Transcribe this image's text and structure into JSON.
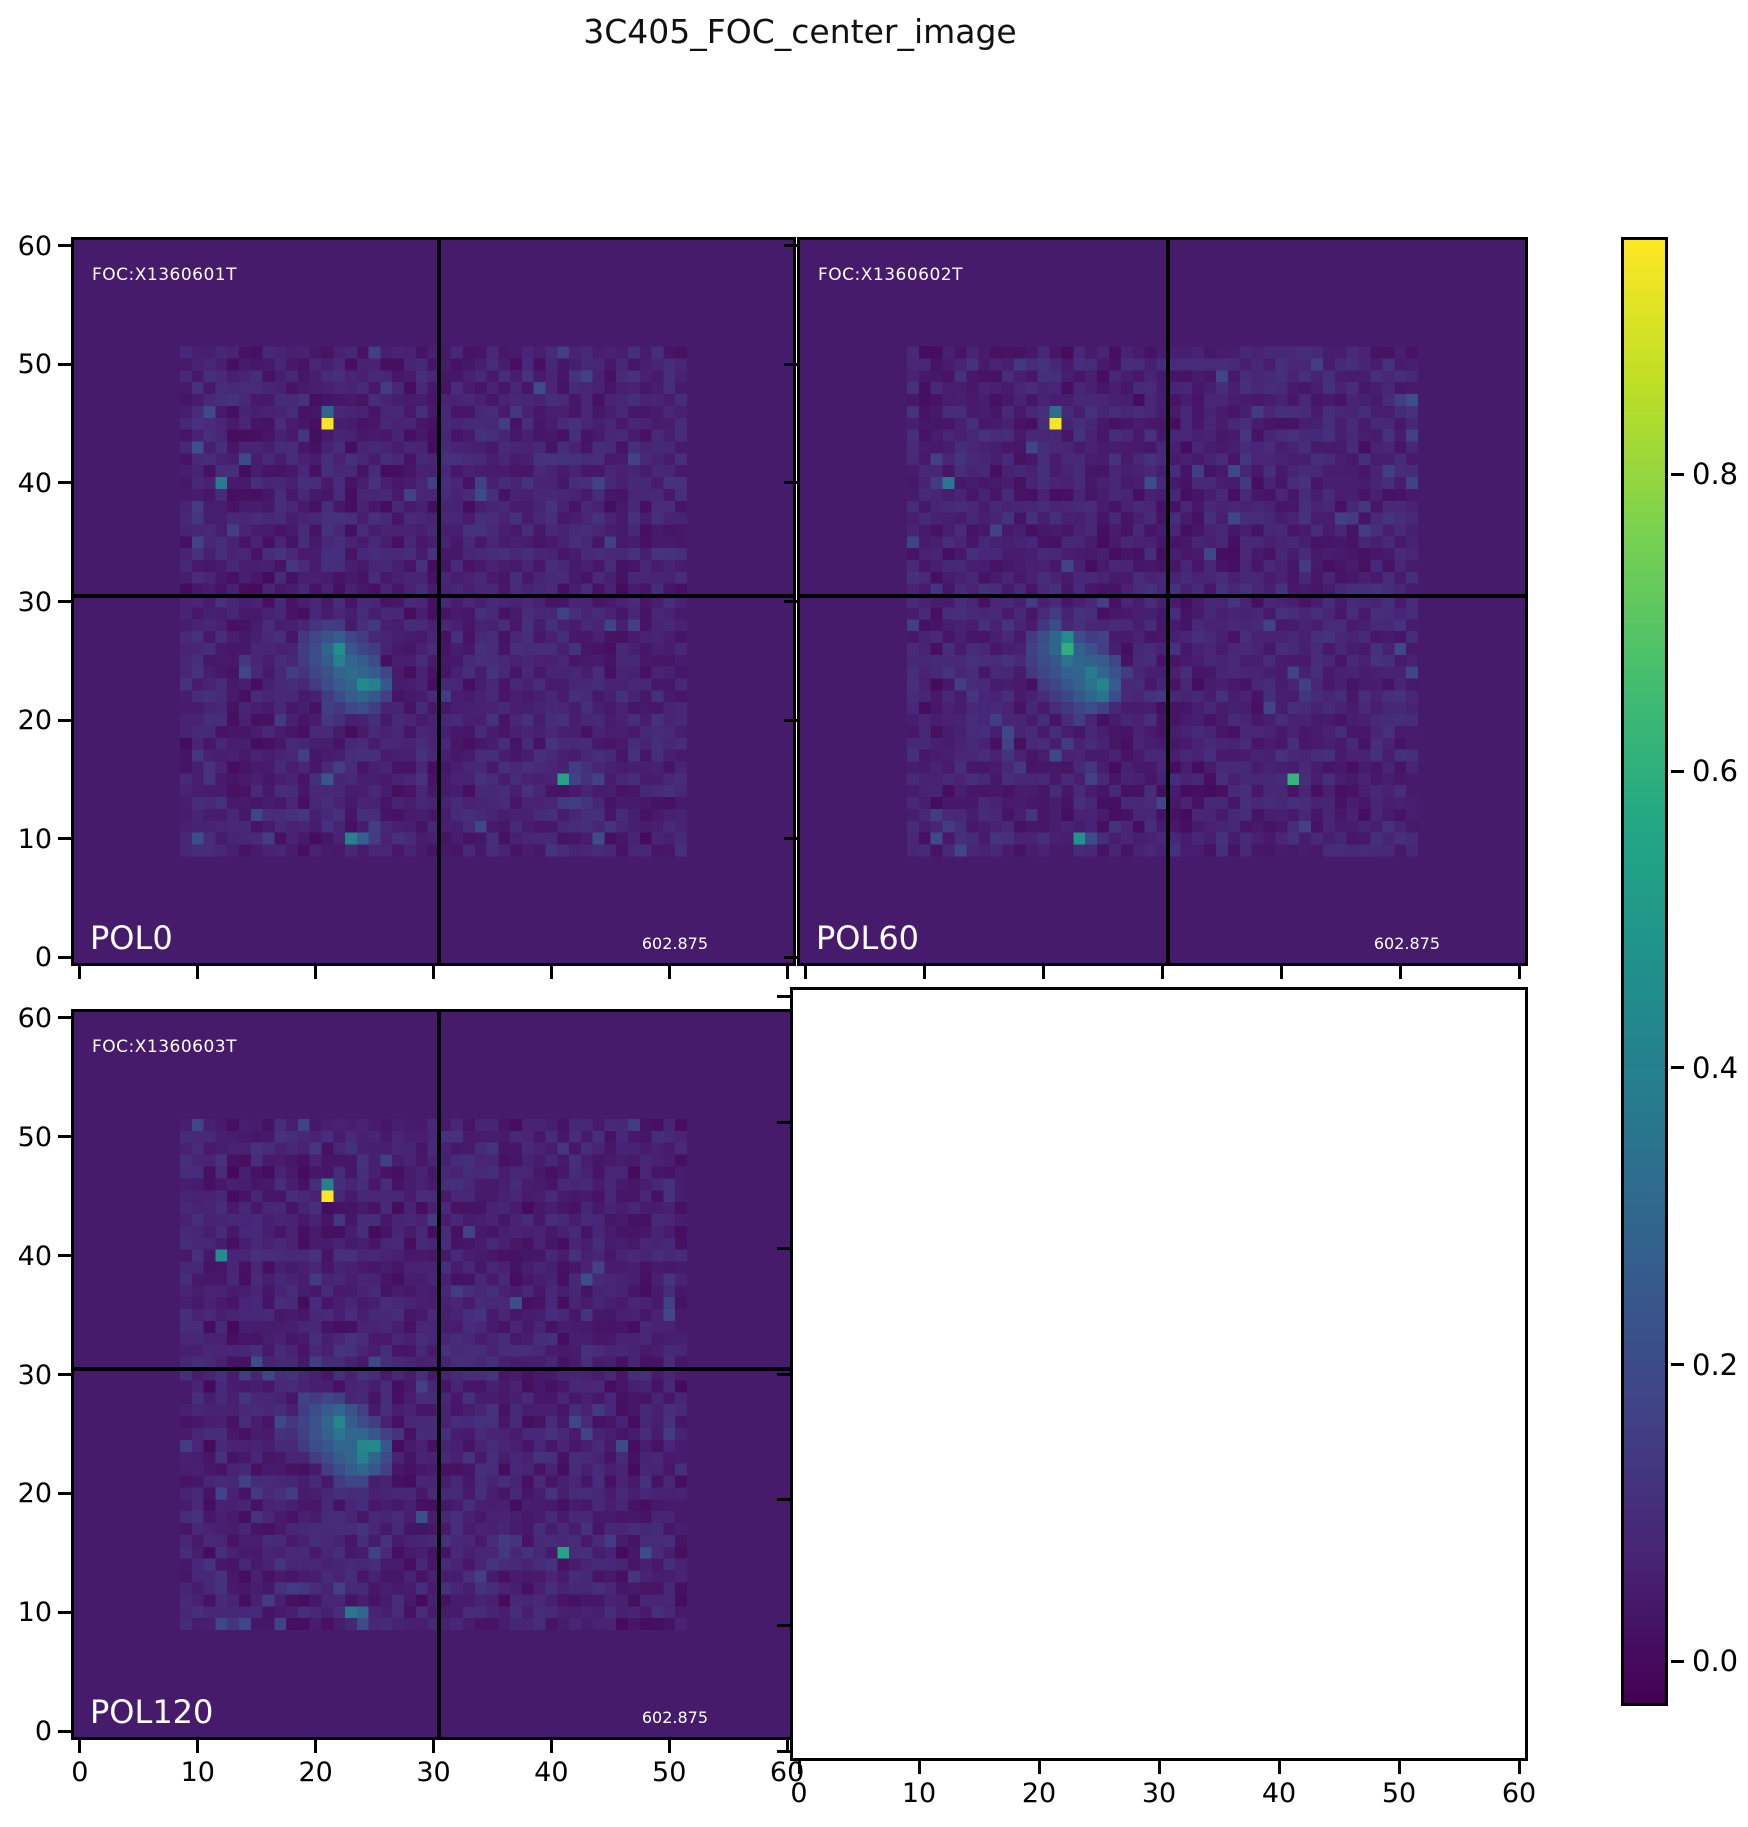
{
  "title": "3C405_FOC_center_image",
  "colors": {
    "figure_bg": "#ffffff",
    "cmap_low": "#440154",
    "cmap_high": "#fde725",
    "annotation_text": "#ffffff",
    "axis_text": "#000000",
    "crosshair": "#000000"
  },
  "chart_data": {
    "type": "heatmap",
    "colormap": "viridis",
    "grid_size": 61,
    "axes": {
      "xlim": [
        -0.5,
        60.5
      ],
      "ylim": [
        -0.5,
        60.5
      ],
      "x_ticks": [
        0,
        10,
        20,
        30,
        40,
        50,
        60
      ],
      "y_ticks": [
        0,
        10,
        20,
        30,
        40,
        50,
        60
      ]
    },
    "crosshair": {
      "x": 30.5,
      "y": 30.5
    },
    "colorbar": {
      "vmin": -0.028,
      "vmax": 0.958,
      "ticks": [
        0.0,
        0.2,
        0.4,
        0.6,
        0.8
      ],
      "position": "right"
    },
    "noise": {
      "outside_square_level": 0.045,
      "square_region": [
        8.5,
        51.5
      ],
      "inside_base": 0.018,
      "inside_amplitude": 0.085,
      "sparkle_chance": 0.035
    },
    "panels": [
      {
        "id": "pol0",
        "position": "top-left",
        "corner_label": "FOC:X1360601T",
        "pol_label": "POL0",
        "value_label": "602.875",
        "seed": 20231,
        "points": [
          [
            21,
            45,
            0.95
          ],
          [
            21,
            46,
            0.3
          ],
          [
            12,
            40,
            0.38
          ],
          [
            41,
            15,
            0.55
          ],
          [
            23,
            10,
            0.4
          ],
          [
            24,
            10,
            0.28
          ]
        ],
        "blob": [
          [
            20,
            28,
            0.12
          ],
          [
            21,
            28,
            0.15
          ],
          [
            22,
            28,
            0.14
          ],
          [
            19,
            27,
            0.13
          ],
          [
            20,
            27,
            0.18
          ],
          [
            21,
            27,
            0.22
          ],
          [
            22,
            27,
            0.26
          ],
          [
            23,
            27,
            0.18
          ],
          [
            24,
            27,
            0.14
          ],
          [
            19,
            26,
            0.15
          ],
          [
            20,
            26,
            0.2
          ],
          [
            21,
            26,
            0.3
          ],
          [
            22,
            26,
            0.46
          ],
          [
            23,
            26,
            0.24
          ],
          [
            24,
            26,
            0.18
          ],
          [
            25,
            26,
            0.14
          ],
          [
            19,
            25,
            0.14
          ],
          [
            20,
            25,
            0.2
          ],
          [
            21,
            25,
            0.26
          ],
          [
            22,
            25,
            0.4
          ],
          [
            23,
            25,
            0.3
          ],
          [
            24,
            25,
            0.26
          ],
          [
            25,
            25,
            0.2
          ],
          [
            19,
            24,
            0.12
          ],
          [
            20,
            24,
            0.18
          ],
          [
            21,
            24,
            0.22
          ],
          [
            22,
            24,
            0.3
          ],
          [
            23,
            24,
            0.32
          ],
          [
            24,
            24,
            0.3
          ],
          [
            25,
            24,
            0.26
          ],
          [
            26,
            24,
            0.18
          ],
          [
            20,
            23,
            0.14
          ],
          [
            21,
            23,
            0.2
          ],
          [
            22,
            23,
            0.26
          ],
          [
            23,
            23,
            0.3
          ],
          [
            24,
            23,
            0.44
          ],
          [
            25,
            23,
            0.4
          ],
          [
            26,
            23,
            0.24
          ],
          [
            21,
            22,
            0.14
          ],
          [
            22,
            22,
            0.2
          ],
          [
            23,
            22,
            0.26
          ],
          [
            24,
            22,
            0.3
          ],
          [
            25,
            22,
            0.24
          ],
          [
            26,
            22,
            0.16
          ],
          [
            22,
            21,
            0.13
          ],
          [
            23,
            21,
            0.18
          ],
          [
            24,
            21,
            0.2
          ],
          [
            25,
            21,
            0.15
          ]
        ]
      },
      {
        "id": "pol60",
        "position": "top-right",
        "corner_label": "FOC:X1360602T",
        "pol_label": "POL60",
        "value_label": "602.875",
        "seed": 40507,
        "points": [
          [
            21,
            45,
            0.95
          ],
          [
            21,
            46,
            0.33
          ],
          [
            12,
            40,
            0.36
          ],
          [
            41,
            15,
            0.62
          ],
          [
            23,
            10,
            0.48
          ],
          [
            24,
            10,
            0.2
          ]
        ],
        "blob": [
          [
            20,
            28,
            0.13
          ],
          [
            21,
            28,
            0.2
          ],
          [
            21,
            29,
            0.14
          ],
          [
            19,
            27,
            0.14
          ],
          [
            20,
            27,
            0.2
          ],
          [
            21,
            27,
            0.3
          ],
          [
            22,
            27,
            0.45
          ],
          [
            23,
            27,
            0.2
          ],
          [
            24,
            27,
            0.15
          ],
          [
            19,
            26,
            0.16
          ],
          [
            20,
            26,
            0.22
          ],
          [
            21,
            26,
            0.3
          ],
          [
            22,
            26,
            0.6
          ],
          [
            23,
            26,
            0.28
          ],
          [
            24,
            26,
            0.22
          ],
          [
            25,
            26,
            0.16
          ],
          [
            19,
            25,
            0.15
          ],
          [
            20,
            25,
            0.2
          ],
          [
            21,
            25,
            0.24
          ],
          [
            22,
            25,
            0.34
          ],
          [
            23,
            25,
            0.3
          ],
          [
            24,
            25,
            0.28
          ],
          [
            25,
            25,
            0.26
          ],
          [
            26,
            25,
            0.18
          ],
          [
            19,
            24,
            0.13
          ],
          [
            20,
            24,
            0.18
          ],
          [
            21,
            24,
            0.22
          ],
          [
            22,
            24,
            0.28
          ],
          [
            23,
            24,
            0.3
          ],
          [
            24,
            24,
            0.38
          ],
          [
            25,
            24,
            0.3
          ],
          [
            26,
            24,
            0.22
          ],
          [
            20,
            23,
            0.14
          ],
          [
            21,
            23,
            0.18
          ],
          [
            22,
            23,
            0.24
          ],
          [
            23,
            23,
            0.28
          ],
          [
            24,
            23,
            0.34
          ],
          [
            25,
            23,
            0.42
          ],
          [
            26,
            23,
            0.26
          ],
          [
            21,
            22,
            0.14
          ],
          [
            22,
            22,
            0.18
          ],
          [
            23,
            22,
            0.24
          ],
          [
            24,
            22,
            0.3
          ],
          [
            25,
            22,
            0.34
          ],
          [
            26,
            22,
            0.2
          ],
          [
            22,
            21,
            0.13
          ],
          [
            23,
            21,
            0.17
          ],
          [
            24,
            21,
            0.2
          ],
          [
            25,
            21,
            0.16
          ]
        ]
      },
      {
        "id": "pol120",
        "position": "bottom-left",
        "corner_label": "FOC:X1360603T",
        "pol_label": "POL120",
        "value_label": "602.875",
        "seed": 77120,
        "points": [
          [
            21,
            45,
            0.97
          ],
          [
            21,
            46,
            0.4
          ],
          [
            12,
            40,
            0.46
          ],
          [
            41,
            15,
            0.55
          ],
          [
            23,
            10,
            0.36
          ],
          [
            24,
            10,
            0.3
          ]
        ],
        "blob": [
          [
            20,
            28,
            0.14
          ],
          [
            21,
            28,
            0.18
          ],
          [
            22,
            28,
            0.16
          ],
          [
            19,
            27,
            0.15
          ],
          [
            20,
            27,
            0.2
          ],
          [
            21,
            27,
            0.26
          ],
          [
            22,
            27,
            0.3
          ],
          [
            23,
            27,
            0.22
          ],
          [
            24,
            27,
            0.16
          ],
          [
            18,
            26,
            0.13
          ],
          [
            19,
            26,
            0.17
          ],
          [
            20,
            26,
            0.22
          ],
          [
            21,
            26,
            0.3
          ],
          [
            22,
            26,
            0.42
          ],
          [
            23,
            26,
            0.26
          ],
          [
            24,
            26,
            0.2
          ],
          [
            25,
            26,
            0.15
          ],
          [
            19,
            25,
            0.16
          ],
          [
            20,
            25,
            0.22
          ],
          [
            21,
            25,
            0.28
          ],
          [
            22,
            25,
            0.36
          ],
          [
            23,
            25,
            0.3
          ],
          [
            24,
            25,
            0.3
          ],
          [
            25,
            25,
            0.24
          ],
          [
            26,
            25,
            0.16
          ],
          [
            19,
            24,
            0.14
          ],
          [
            20,
            24,
            0.2
          ],
          [
            21,
            24,
            0.24
          ],
          [
            22,
            24,
            0.3
          ],
          [
            23,
            24,
            0.3
          ],
          [
            24,
            24,
            0.42
          ],
          [
            25,
            24,
            0.44
          ],
          [
            26,
            24,
            0.24
          ],
          [
            20,
            23,
            0.15
          ],
          [
            21,
            23,
            0.2
          ],
          [
            22,
            23,
            0.26
          ],
          [
            23,
            23,
            0.3
          ],
          [
            24,
            23,
            0.4
          ],
          [
            25,
            23,
            0.3
          ],
          [
            26,
            23,
            0.2
          ],
          [
            21,
            22,
            0.15
          ],
          [
            22,
            22,
            0.2
          ],
          [
            23,
            22,
            0.26
          ],
          [
            24,
            22,
            0.3
          ],
          [
            25,
            22,
            0.24
          ],
          [
            26,
            22,
            0.16
          ],
          [
            22,
            21,
            0.14
          ],
          [
            23,
            21,
            0.18
          ],
          [
            24,
            21,
            0.18
          ]
        ]
      },
      {
        "id": "empty",
        "position": "bottom-right",
        "empty": true
      }
    ]
  }
}
